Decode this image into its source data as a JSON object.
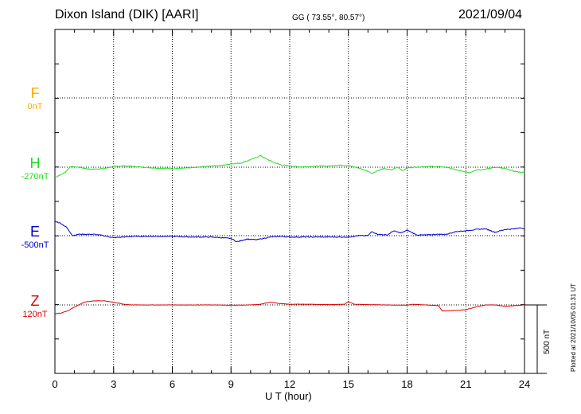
{
  "header": {
    "station": "Dixon Island (DIK)  [AARI]",
    "coords": "GG ( 73.55°,  80.57°)",
    "date": "2021/09/04"
  },
  "plotted_note": "Plotted at 2021/10/05 01:31  UT",
  "scale_bar_label": "500 nT",
  "colors": {
    "F": "#ffaa00",
    "H": "#22dd22",
    "E": "#0000cc",
    "Z": "#dd0000"
  },
  "chart_data": {
    "type": "line",
    "title": "Dixon Island (DIK)  [AARI]",
    "xlabel": "U T (hour)",
    "ylabel": "",
    "xlim": [
      0,
      24
    ],
    "x_ticks": [
      "0",
      "3",
      "6",
      "9",
      "12",
      "15",
      "18",
      "21",
      "24"
    ],
    "grid": true,
    "units": "nT",
    "scale_bar_nT": 500,
    "channels": [
      {
        "id": "F",
        "name": "F",
        "baseline_label": "0nT",
        "baseline_nT": 0,
        "color": "#ffaa00",
        "x": [],
        "values": []
      },
      {
        "id": "H",
        "name": "H",
        "baseline_label": "-270nT",
        "baseline_nT": -270,
        "color": "#22dd22",
        "x": [
          0,
          0.5,
          0.8,
          1.2,
          1.8,
          2.5,
          3.0,
          3.5,
          4.0,
          5.0,
          6.0,
          7.0,
          7.5,
          8.0,
          8.5,
          9.0,
          9.5,
          9.8,
          10.2,
          10.5,
          10.8,
          11.2,
          11.6,
          12.0,
          12.5,
          13.0,
          13.5,
          14.0,
          14.5,
          15.0,
          15.5,
          16.0,
          16.2,
          16.5,
          16.8,
          17.2,
          17.5,
          17.8,
          18.0,
          18.5,
          19.0,
          19.5,
          20.0,
          20.5,
          20.8,
          21.2,
          21.5,
          22.0,
          22.5,
          23.0,
          23.5,
          24.0
        ],
        "values": [
          -345,
          -310,
          -265,
          -270,
          -285,
          -280,
          -265,
          -260,
          -265,
          -275,
          -280,
          -275,
          -268,
          -260,
          -258,
          -245,
          -240,
          -225,
          -205,
          -185,
          -210,
          -235,
          -255,
          -260,
          -268,
          -265,
          -262,
          -262,
          -255,
          -258,
          -275,
          -300,
          -315,
          -295,
          -280,
          -290,
          -270,
          -295,
          -275,
          -268,
          -265,
          -265,
          -270,
          -290,
          -300,
          -310,
          -290,
          -285,
          -270,
          -280,
          -300,
          -310
        ]
      },
      {
        "id": "E",
        "name": "E",
        "baseline_label": "-500nT",
        "baseline_nT": -500,
        "color": "#0000cc",
        "x": [
          0,
          0.3,
          0.6,
          0.9,
          1.2,
          2.0,
          2.5,
          3.0,
          4.0,
          5.0,
          6.0,
          7.0,
          8.0,
          8.5,
          9.0,
          9.3,
          9.8,
          10.3,
          11.0,
          11.5,
          12.0,
          13.0,
          14.0,
          15.0,
          15.5,
          16.0,
          16.2,
          16.5,
          17.0,
          17.3,
          17.7,
          18.0,
          18.5,
          19.0,
          19.5,
          20.0,
          20.5,
          21.0,
          21.5,
          22.0,
          22.5,
          23.0,
          23.5,
          23.8,
          24.0
        ],
        "values": [
          -395,
          -410,
          -440,
          -500,
          -490,
          -490,
          -500,
          -515,
          -505,
          -505,
          -505,
          -510,
          -510,
          -515,
          -520,
          -545,
          -525,
          -530,
          -510,
          -505,
          -510,
          -510,
          -510,
          -510,
          -500,
          -500,
          -470,
          -490,
          -495,
          -465,
          -480,
          -460,
          -495,
          -495,
          -490,
          -490,
          -470,
          -465,
          -455,
          -450,
          -475,
          -455,
          -450,
          -440,
          -455
        ]
      },
      {
        "id": "Z",
        "name": "Z",
        "baseline_label": "120nT",
        "baseline_nT": 120,
        "color": "#dd0000",
        "x": [
          0,
          0.3,
          0.7,
          1.0,
          1.5,
          2.0,
          2.5,
          3.0,
          3.5,
          4.0,
          5.0,
          6.0,
          7.0,
          8.0,
          9.0,
          10.0,
          10.5,
          11.0,
          11.5,
          12.0,
          13.0,
          14.0,
          14.8,
          15.0,
          15.3,
          16.0,
          17.0,
          18.0,
          18.3,
          19.0,
          19.6,
          19.8,
          20.5,
          21.0,
          21.5,
          22.0,
          22.5,
          23.0,
          23.5,
          24.0
        ],
        "values": [
          55,
          60,
          80,
          105,
          140,
          150,
          150,
          140,
          125,
          120,
          120,
          120,
          120,
          120,
          118,
          120,
          125,
          140,
          130,
          125,
          125,
          122,
          125,
          145,
          125,
          122,
          120,
          118,
          125,
          120,
          115,
          75,
          80,
          85,
          105,
          120,
          120,
          110,
          115,
          120
        ]
      }
    ]
  }
}
